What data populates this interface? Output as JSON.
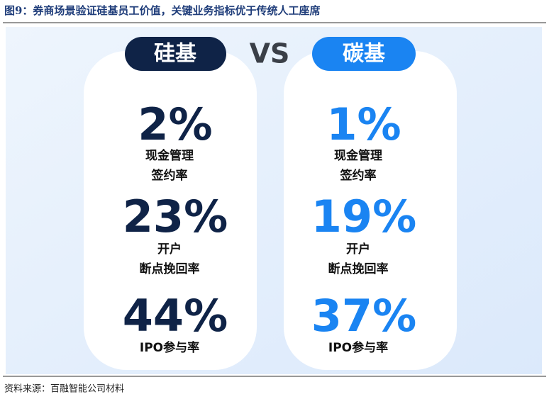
{
  "header": {
    "title": "图9：券商场景验证硅基员工价值，关键业务指标优于传统人工座席"
  },
  "comparison": {
    "vs": "VS",
    "panels": [
      {
        "name": "硅基",
        "metrics": [
          {
            "value": "2%",
            "label": [
              "现金管理",
              "签约率"
            ]
          },
          {
            "value": "23%",
            "label": [
              "开户",
              "断点挽回率"
            ]
          },
          {
            "value": "44%",
            "label": [
              "IPO参与率"
            ]
          }
        ]
      },
      {
        "name": "碳基",
        "metrics": [
          {
            "value": "1%",
            "label": [
              "现金管理",
              "签约率"
            ]
          },
          {
            "value": "19%",
            "label": [
              "开户",
              "断点挽回率"
            ]
          },
          {
            "value": "37%",
            "label": [
              "IPO参与率"
            ]
          }
        ]
      }
    ]
  },
  "footer": {
    "source": "资料来源：百融智能公司材料"
  }
}
